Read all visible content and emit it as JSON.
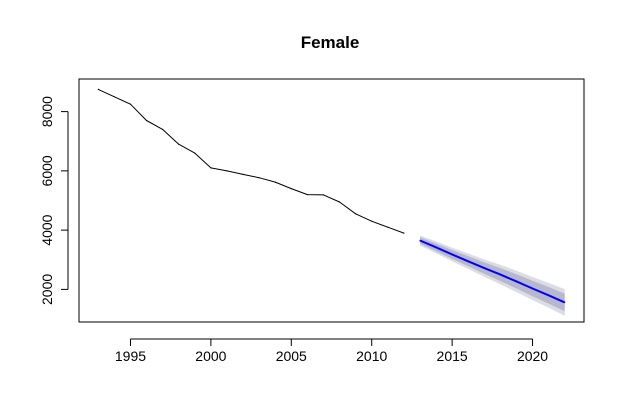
{
  "chart_data": {
    "type": "line",
    "title": "Female",
    "xlabel": "",
    "ylabel": "",
    "xlim": [
      1991.8,
      2023.2
    ],
    "ylim": [
      900,
      9100
    ],
    "x_ticks": [
      1995,
      2000,
      2005,
      2010,
      2015,
      2020
    ],
    "y_ticks": [
      2000,
      4000,
      6000,
      8000
    ],
    "grid": false,
    "legend": "none",
    "series": [
      {
        "kind": "observed",
        "color": "#000000",
        "x": [
          1993,
          1994,
          1995,
          1996,
          1997,
          1998,
          1999,
          2000,
          2001,
          2002,
          2003,
          2004,
          2005,
          2006,
          2007,
          2008,
          2009,
          2010,
          2011,
          2012
        ],
        "y": [
          8750,
          8500,
          8250,
          7700,
          7400,
          6900,
          6600,
          6100,
          6000,
          5880,
          5770,
          5620,
          5400,
          5200,
          5190,
          4950,
          4550,
          4300,
          4100,
          3900
        ]
      },
      {
        "kind": "forecast",
        "color": "#0000ff",
        "x": [
          2013,
          2014,
          2015,
          2016,
          2017,
          2018,
          2019,
          2020,
          2021,
          2022
        ],
        "y": [
          3650,
          3420,
          3180,
          2950,
          2720,
          2500,
          2270,
          2030,
          1800,
          1560
        ],
        "lower80": [
          3540,
          3290,
          3030,
          2780,
          2530,
          2280,
          2030,
          1770,
          1520,
          1260
        ],
        "upper80": [
          3760,
          3550,
          3330,
          3120,
          2910,
          2720,
          2510,
          2290,
          2080,
          1860
        ],
        "lower95": [
          3480,
          3220,
          2950,
          2690,
          2430,
          2170,
          1910,
          1640,
          1380,
          1110
        ],
        "upper95": [
          3820,
          3620,
          3410,
          3210,
          3010,
          2830,
          2630,
          2420,
          2220,
          2010
        ],
        "band80_color": "#b8b8cc",
        "band95_color": "#dcdce6"
      }
    ]
  }
}
